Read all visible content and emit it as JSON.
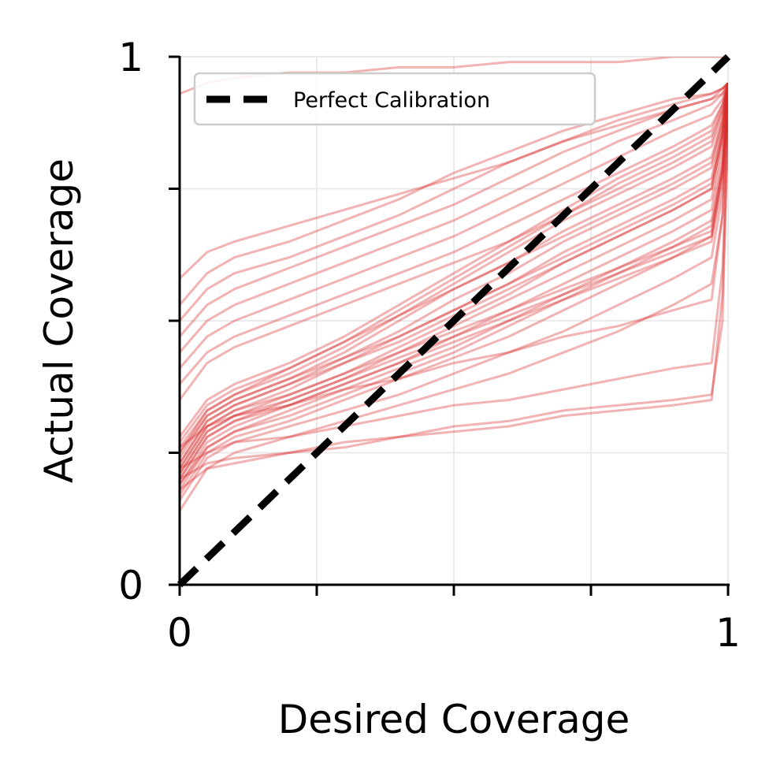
{
  "chart_data": {
    "type": "line",
    "xlabel": "Desired Coverage",
    "ylabel": "Actual Coverage",
    "xlim": [
      0,
      1
    ],
    "ylim": [
      0,
      1
    ],
    "x_tick_values": [
      0,
      0.25,
      0.5,
      0.75,
      1
    ],
    "y_tick_values": [
      0,
      0.25,
      0.5,
      0.75,
      1
    ],
    "x_tick_labels": [
      "0",
      "",
      "",
      "",
      "1"
    ],
    "y_tick_labels": [
      "0",
      "",
      "",
      "",
      "1"
    ],
    "grid": true,
    "legend": {
      "placement": "top-left",
      "entries": [
        "Perfect Calibration"
      ]
    },
    "reference_line": {
      "name": "Perfect Calibration",
      "style": "dashed",
      "color": "#000000",
      "x": [
        0,
        1
      ],
      "y": [
        0,
        1
      ]
    },
    "curves": {
      "color": "#d62728",
      "opacity": 0.22,
      "x": [
        0,
        0.05,
        0.1,
        0.2,
        0.3,
        0.4,
        0.5,
        0.6,
        0.7,
        0.8,
        0.9,
        0.97,
        0.99,
        1.0
      ],
      "series": [
        {
          "y": [
            0.14,
            0.22,
            0.25,
            0.28,
            0.31,
            0.34,
            0.37,
            0.4,
            0.44,
            0.48,
            0.53,
            0.57,
            0.7,
            0.9
          ]
        },
        {
          "y": [
            0.16,
            0.24,
            0.27,
            0.3,
            0.33,
            0.36,
            0.4,
            0.44,
            0.48,
            0.53,
            0.58,
            0.62,
            0.74,
            0.92
          ]
        },
        {
          "y": [
            0.17,
            0.25,
            0.28,
            0.31,
            0.35,
            0.39,
            0.43,
            0.47,
            0.52,
            0.57,
            0.62,
            0.66,
            0.78,
            0.93
          ]
        },
        {
          "y": [
            0.18,
            0.26,
            0.29,
            0.33,
            0.37,
            0.41,
            0.45,
            0.5,
            0.55,
            0.6,
            0.65,
            0.69,
            0.8,
            0.93
          ]
        },
        {
          "y": [
            0.19,
            0.27,
            0.3,
            0.34,
            0.38,
            0.42,
            0.47,
            0.52,
            0.57,
            0.62,
            0.67,
            0.71,
            0.82,
            0.94
          ]
        },
        {
          "y": [
            0.2,
            0.28,
            0.31,
            0.35,
            0.39,
            0.44,
            0.49,
            0.54,
            0.59,
            0.64,
            0.69,
            0.73,
            0.84,
            0.94
          ]
        },
        {
          "y": [
            0.21,
            0.29,
            0.32,
            0.36,
            0.4,
            0.45,
            0.5,
            0.55,
            0.61,
            0.66,
            0.71,
            0.75,
            0.85,
            0.94
          ]
        },
        {
          "y": [
            0.22,
            0.3,
            0.33,
            0.37,
            0.42,
            0.47,
            0.52,
            0.57,
            0.63,
            0.68,
            0.73,
            0.77,
            0.86,
            0.94
          ]
        },
        {
          "y": [
            0.23,
            0.31,
            0.34,
            0.38,
            0.43,
            0.48,
            0.54,
            0.59,
            0.65,
            0.7,
            0.75,
            0.79,
            0.87,
            0.95
          ]
        },
        {
          "y": [
            0.24,
            0.32,
            0.35,
            0.39,
            0.44,
            0.5,
            0.56,
            0.61,
            0.67,
            0.72,
            0.77,
            0.81,
            0.88,
            0.95
          ]
        },
        {
          "y": [
            0.25,
            0.33,
            0.36,
            0.4,
            0.45,
            0.51,
            0.57,
            0.63,
            0.69,
            0.74,
            0.79,
            0.83,
            0.89,
            0.95
          ]
        },
        {
          "y": [
            0.26,
            0.33,
            0.36,
            0.41,
            0.46,
            0.52,
            0.58,
            0.64,
            0.7,
            0.76,
            0.81,
            0.85,
            0.9,
            0.95
          ]
        },
        {
          "y": [
            0.27,
            0.34,
            0.37,
            0.41,
            0.46,
            0.51,
            0.56,
            0.61,
            0.66,
            0.71,
            0.76,
            0.8,
            0.88,
            0.94
          ]
        },
        {
          "y": [
            0.22,
            0.3,
            0.33,
            0.36,
            0.4,
            0.44,
            0.48,
            0.52,
            0.56,
            0.6,
            0.64,
            0.67,
            0.79,
            0.92
          ]
        },
        {
          "y": [
            0.2,
            0.28,
            0.31,
            0.34,
            0.38,
            0.42,
            0.46,
            0.5,
            0.54,
            0.58,
            0.62,
            0.65,
            0.76,
            0.91
          ]
        },
        {
          "y": [
            0.25,
            0.32,
            0.35,
            0.39,
            0.43,
            0.47,
            0.52,
            0.57,
            0.62,
            0.67,
            0.72,
            0.76,
            0.86,
            0.95
          ]
        },
        {
          "y": [
            0.23,
            0.31,
            0.34,
            0.38,
            0.42,
            0.46,
            0.51,
            0.56,
            0.61,
            0.66,
            0.71,
            0.75,
            0.85,
            0.94
          ]
        },
        {
          "y": [
            0.19,
            0.26,
            0.29,
            0.32,
            0.36,
            0.4,
            0.44,
            0.49,
            0.54,
            0.59,
            0.64,
            0.68,
            0.79,
            0.93
          ]
        },
        {
          "y": [
            0.28,
            0.35,
            0.38,
            0.42,
            0.47,
            0.53,
            0.59,
            0.65,
            0.71,
            0.77,
            0.82,
            0.86,
            0.91,
            0.95
          ]
        },
        {
          "y": [
            0.21,
            0.29,
            0.32,
            0.35,
            0.39,
            0.43,
            0.47,
            0.51,
            0.55,
            0.59,
            0.63,
            0.66,
            0.78,
            0.92
          ]
        },
        {
          "y": [
            0.35,
            0.42,
            0.45,
            0.49,
            0.53,
            0.57,
            0.61,
            0.65,
            0.7,
            0.75,
            0.8,
            0.84,
            0.9,
            0.95
          ]
        },
        {
          "y": [
            0.38,
            0.44,
            0.47,
            0.51,
            0.55,
            0.59,
            0.63,
            0.68,
            0.73,
            0.78,
            0.83,
            0.87,
            0.91,
            0.95
          ]
        },
        {
          "y": [
            0.41,
            0.47,
            0.5,
            0.54,
            0.58,
            0.62,
            0.66,
            0.71,
            0.76,
            0.81,
            0.86,
            0.89,
            0.92,
            0.95
          ]
        },
        {
          "y": [
            0.44,
            0.5,
            0.53,
            0.57,
            0.61,
            0.65,
            0.69,
            0.74,
            0.79,
            0.84,
            0.88,
            0.91,
            0.93,
            0.95
          ]
        },
        {
          "y": [
            0.47,
            0.53,
            0.56,
            0.6,
            0.64,
            0.68,
            0.72,
            0.77,
            0.82,
            0.86,
            0.9,
            0.92,
            0.94,
            0.95
          ]
        },
        {
          "y": [
            0.5,
            0.56,
            0.59,
            0.62,
            0.66,
            0.7,
            0.75,
            0.8,
            0.84,
            0.88,
            0.91,
            0.93,
            0.94,
            0.95
          ]
        },
        {
          "y": [
            0.53,
            0.59,
            0.62,
            0.65,
            0.69,
            0.73,
            0.78,
            0.82,
            0.86,
            0.89,
            0.92,
            0.93,
            0.94,
            0.95
          ]
        },
        {
          "y": [
            0.58,
            0.63,
            0.65,
            0.68,
            0.71,
            0.74,
            0.77,
            0.8,
            0.84,
            0.87,
            0.9,
            0.92,
            0.93,
            0.95
          ]
        },
        {
          "y": [
            0.18,
            0.22,
            0.23,
            0.25,
            0.26,
            0.28,
            0.29,
            0.3,
            0.32,
            0.33,
            0.34,
            0.35,
            0.55,
            0.87
          ]
        },
        {
          "y": [
            0.2,
            0.23,
            0.24,
            0.25,
            0.27,
            0.28,
            0.3,
            0.31,
            0.33,
            0.34,
            0.35,
            0.36,
            0.5,
            0.88
          ]
        },
        {
          "y": [
            0.22,
            0.25,
            0.27,
            0.28,
            0.3,
            0.32,
            0.34,
            0.35,
            0.37,
            0.39,
            0.41,
            0.42,
            0.6,
            0.89
          ]
        },
        {
          "y": [
            0.26,
            0.3,
            0.32,
            0.34,
            0.37,
            0.39,
            0.42,
            0.44,
            0.47,
            0.49,
            0.52,
            0.54,
            0.7,
            0.91
          ]
        },
        {
          "y": [
            0.93,
            0.95,
            0.96,
            0.97,
            0.97,
            0.98,
            0.98,
            0.99,
            0.99,
            0.99,
            1.0,
            1.0,
            1.0,
            1.0
          ]
        }
      ]
    }
  }
}
